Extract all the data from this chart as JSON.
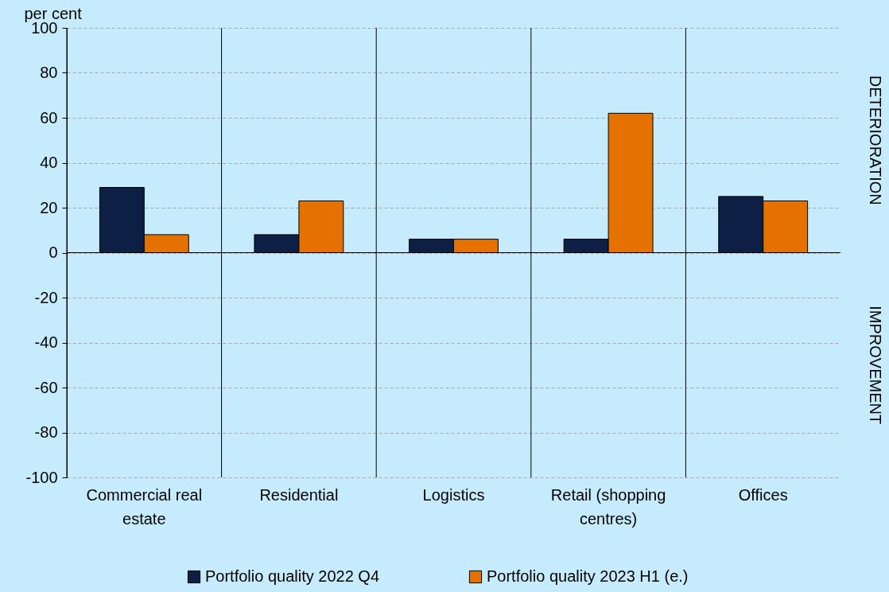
{
  "chart_data": {
    "type": "bar",
    "ylabel": "per cent",
    "categories": [
      "Commercial real estate",
      "Residential",
      "Logistics",
      "Retail (shopping centres)",
      "Offices"
    ],
    "series": [
      {
        "name": "Portfolio quality 2022 Q4",
        "color": "#0d1f45",
        "values": [
          29,
          8,
          6,
          6,
          25
        ]
      },
      {
        "name": "Portfolio quality 2023 H1 (e.)",
        "color": "#e57200",
        "values": [
          8,
          23,
          6,
          62,
          23
        ]
      }
    ],
    "ylim": [
      -100,
      100
    ],
    "yticks": [
      -100,
      -80,
      -60,
      -40,
      -20,
      0,
      20,
      40,
      60,
      80,
      100
    ],
    "grid": true,
    "legend": "bottom",
    "annotations": [
      "DETERIORATION",
      "IMPROVEMENT"
    ]
  }
}
